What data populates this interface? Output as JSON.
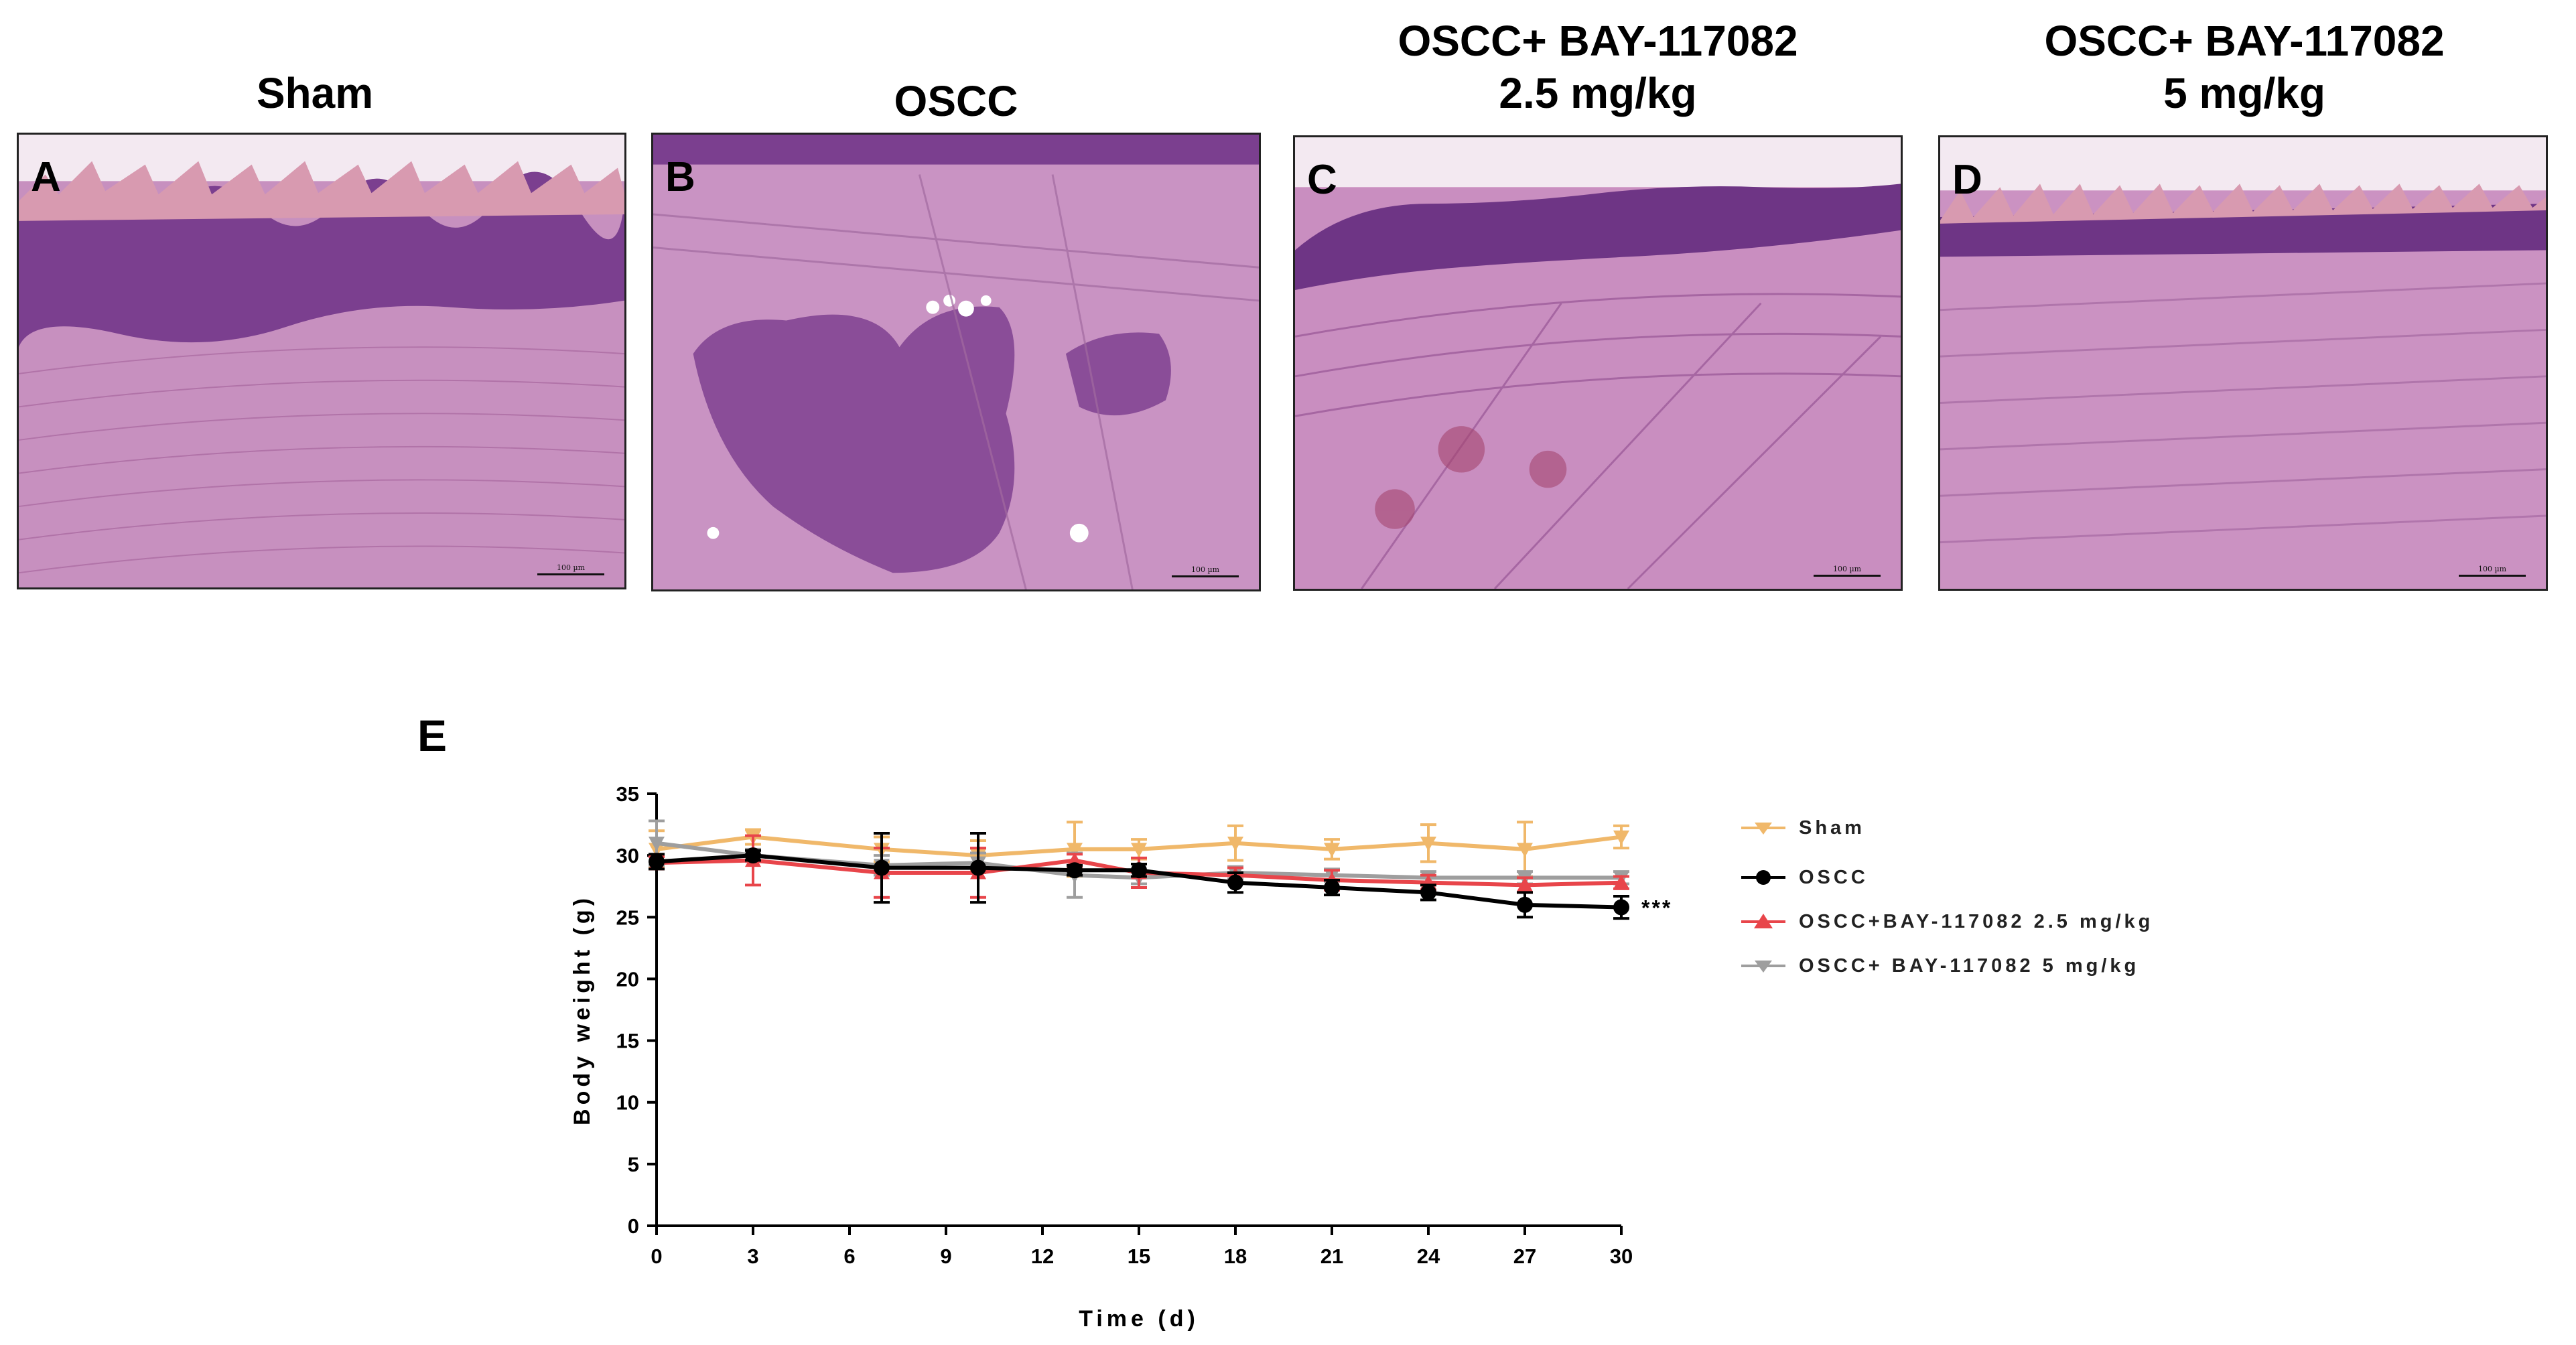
{
  "panels": [
    {
      "letter": "A",
      "title": "Sham"
    },
    {
      "letter": "B",
      "title": "OSCC"
    },
    {
      "letter": "C",
      "title": "OSCC+ BAY-117082\n2.5 mg/kg"
    },
    {
      "letter": "D",
      "title": "OSCC+ BAY-117082\n5 mg/kg"
    }
  ],
  "scale_label": "100 µm",
  "panel_e_letter": "E",
  "colors": {
    "sham": "#f0b86a",
    "oscc": "#000000",
    "bay25": "#e8454a",
    "bay5": "#9e9e9e",
    "tissue": "#c98ec0",
    "epithelium": "#7b3f8f"
  },
  "chart_data": {
    "type": "line",
    "title": "",
    "xlabel": "Time (d)",
    "ylabel": "Body weight (g)",
    "xlim": [
      0,
      30
    ],
    "ylim": [
      0,
      35
    ],
    "xticks": [
      0,
      3,
      6,
      9,
      12,
      15,
      18,
      21,
      24,
      27,
      30
    ],
    "yticks": [
      0,
      5,
      10,
      15,
      20,
      25,
      30,
      35
    ],
    "significance": "***",
    "legend_position": "right",
    "series": [
      {
        "name": "Sham",
        "marker": "triangle-down",
        "color": "#f0b86a",
        "x": [
          0,
          3,
          7,
          10,
          13,
          15,
          18,
          21,
          24,
          27,
          30
        ],
        "y": [
          30.5,
          31.5,
          30.5,
          30.0,
          30.5,
          30.5,
          31.0,
          30.5,
          31.0,
          30.5,
          31.5
        ],
        "err": [
          1.5,
          0.6,
          1.0,
          1.2,
          2.2,
          0.8,
          1.4,
          0.8,
          1.5,
          2.2,
          0.9
        ]
      },
      {
        "name": "OSCC",
        "marker": "circle",
        "color": "#000000",
        "x": [
          0,
          3,
          7,
          10,
          13,
          15,
          18,
          21,
          24,
          27,
          30
        ],
        "y": [
          29.5,
          30.0,
          29.0,
          29.0,
          28.8,
          28.8,
          27.8,
          27.4,
          27.0,
          26.0,
          25.8
        ],
        "err": [
          0.6,
          0.4,
          2.8,
          2.8,
          0.4,
          0.5,
          0.8,
          0.6,
          0.6,
          1.0,
          0.9
        ]
      },
      {
        "name": "OSCC+BAY-117082  2.5 mg/kg",
        "marker": "triangle-up",
        "color": "#e8454a",
        "x": [
          0,
          3,
          7,
          10,
          13,
          15,
          18,
          21,
          24,
          27,
          30
        ],
        "y": [
          29.4,
          29.6,
          28.6,
          28.6,
          29.6,
          28.6,
          28.4,
          28.0,
          27.8,
          27.6,
          27.8
        ],
        "err": [
          0.5,
          2.0,
          2.0,
          2.0,
          0.5,
          1.2,
          0.6,
          0.8,
          0.6,
          0.6,
          0.5
        ]
      },
      {
        "name": "OSCC+ BAY-117082 5 mg/kg",
        "marker": "triangle-down",
        "color": "#9e9e9e",
        "x": [
          0,
          3,
          7,
          10,
          13,
          15,
          18,
          21,
          24,
          27,
          30
        ],
        "y": [
          31.0,
          30.0,
          29.2,
          29.4,
          28.4,
          28.2,
          28.6,
          28.4,
          28.2,
          28.2,
          28.2
        ],
        "err": [
          1.8,
          0.5,
          0.8,
          0.8,
          1.8,
          0.5,
          0.5,
          0.5,
          0.5,
          0.5,
          0.5
        ]
      }
    ]
  }
}
